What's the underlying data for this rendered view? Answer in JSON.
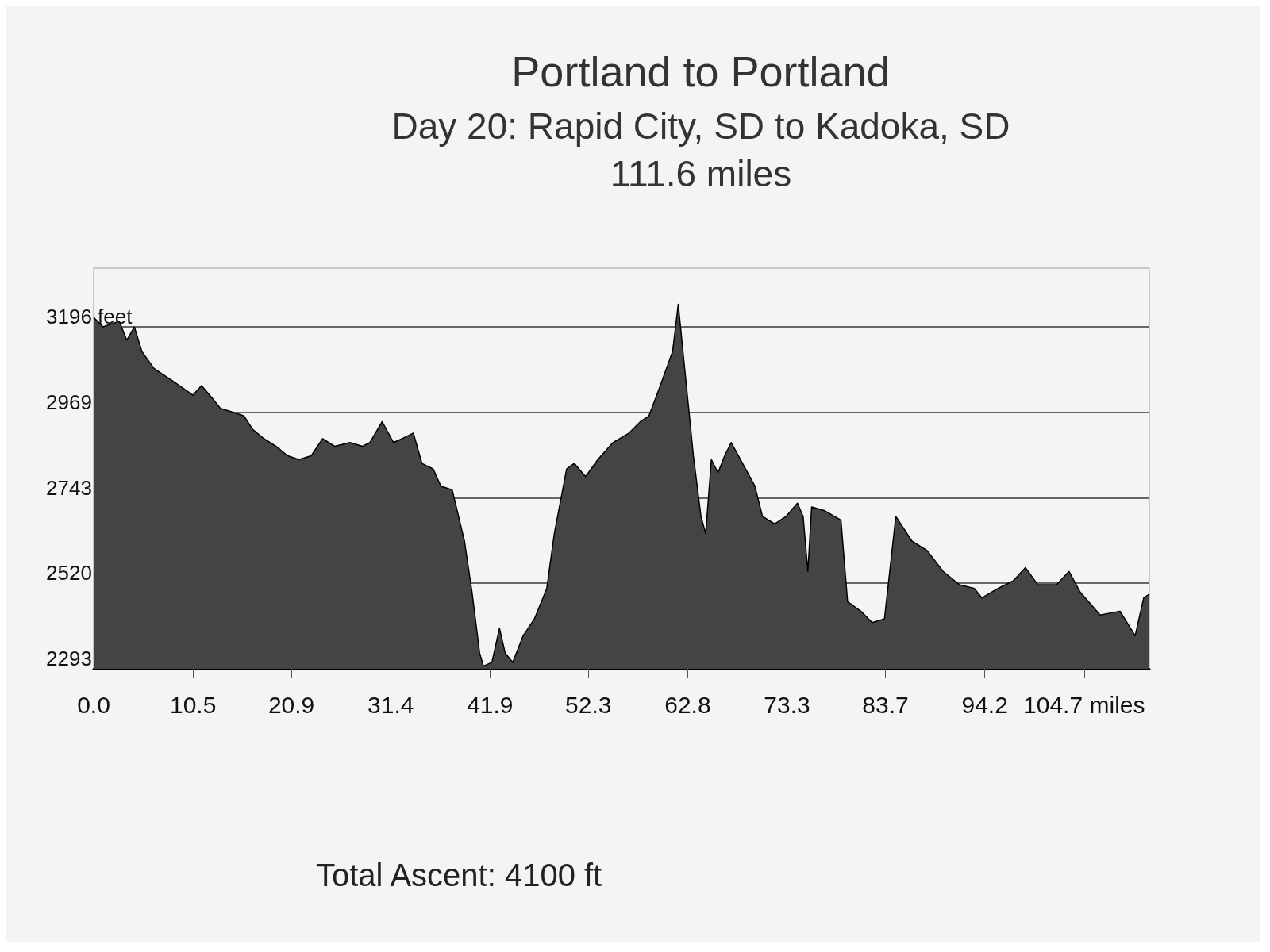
{
  "chart_data": {
    "type": "area",
    "title": "Portland to Portland",
    "subtitle": "Day 20: Rapid City, SD to Kadoka, SD\n111.6 miles",
    "annotations": [
      "Total Ascent: 4100 ft"
    ],
    "xlim": [
      0,
      111.6
    ],
    "xticks": [
      {
        "value": 0,
        "label": "0.0"
      },
      10.5,
      20.9,
      31.4,
      41.9,
      52.3,
      62.8,
      73.3,
      83.7,
      94.2,
      {
        "value": 104.7,
        "label": "104.7 miles"
      }
    ],
    "ylim": [
      2293,
      3350
    ],
    "yticks": [
      2293,
      2520,
      2743,
      2969,
      {
        "value": 3196,
        "label": "3196 feet"
      }
    ],
    "grid": "y",
    "marker": "none",
    "series": [
      {
        "color": "#444444",
        "x": [
          0,
          1.0,
          2.7,
          3.5,
          4.3,
          5.1,
          6.4,
          8.5,
          10.5,
          11.4,
          12.6,
          13.4,
          14.7,
          15.9,
          16.8,
          18.0,
          19.3,
          20.5,
          21.7,
          23.0,
          24.2,
          25.5,
          27.1,
          28.4,
          29.2,
          30.5,
          31.7,
          32.6,
          33.8,
          34.7,
          35.9,
          36.7,
          37.9,
          39.2,
          40.0,
          40.8,
          41.2,
          42.1,
          42.9,
          43.5,
          44.3,
          45.4,
          46.6,
          47.9,
          48.7,
          50.0,
          50.8,
          52.0,
          53.3,
          54.9,
          56.6,
          57.8,
          58.7,
          59.9,
          61.2,
          61.8,
          62.4,
          63.4,
          64.2,
          64.7,
          65.3,
          66.0,
          66.7,
          67.4,
          68.6,
          69.9,
          70.7,
          72.0,
          73.2,
          74.4,
          75.0,
          75.5,
          75.9,
          77.3,
          79.0,
          79.7,
          81.1,
          82.3,
          83.6,
          84.8,
          86.5,
          88.1,
          89.8,
          91.5,
          93.1,
          93.9,
          95.6,
          97.2,
          98.5,
          99.8,
          101.8,
          103.1,
          104.3,
          106.4,
          108.5,
          110.1,
          111.0,
          111.6
        ],
        "values": [
          3220,
          3195,
          3210,
          3160,
          3195,
          3130,
          3085,
          3050,
          3015,
          3040,
          3005,
          2980,
          2970,
          2960,
          2925,
          2900,
          2880,
          2855,
          2845,
          2855,
          2900,
          2880,
          2890,
          2880,
          2890,
          2945,
          2890,
          2900,
          2915,
          2835,
          2820,
          2775,
          2765,
          2630,
          2495,
          2335,
          2300,
          2310,
          2400,
          2335,
          2310,
          2380,
          2425,
          2505,
          2650,
          2820,
          2835,
          2800,
          2845,
          2890,
          2915,
          2945,
          2960,
          3040,
          3130,
          3255,
          3105,
          2855,
          2695,
          2650,
          2845,
          2810,
          2855,
          2890,
          2835,
          2775,
          2695,
          2675,
          2695,
          2730,
          2695,
          2550,
          2720,
          2710,
          2685,
          2470,
          2445,
          2415,
          2425,
          2695,
          2630,
          2605,
          2550,
          2515,
          2505,
          2480,
          2505,
          2525,
          2560,
          2515,
          2515,
          2550,
          2495,
          2435,
          2445,
          2380,
          2480,
          2490
        ]
      }
    ]
  }
}
